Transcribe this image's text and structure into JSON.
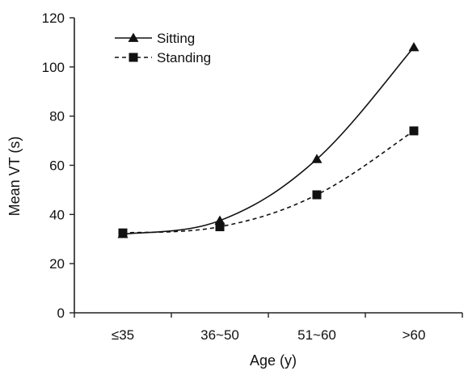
{
  "chart_data": {
    "type": "line",
    "xlabel": "Age (y)",
    "ylabel": "Mean VT (s)",
    "categories": [
      "≤35",
      "36~50",
      "51~60",
      ">60"
    ],
    "ylim": [
      0,
      120
    ],
    "yticks": [
      0,
      20,
      40,
      60,
      80,
      100,
      120
    ],
    "grid": false,
    "legend_position": "top-left",
    "series": [
      {
        "name": "Sitting",
        "marker": "triangle",
        "line_style": "solid",
        "values": [
          32,
          37.5,
          62.5,
          108
        ]
      },
      {
        "name": "Standing",
        "marker": "square",
        "line_style": "dashed",
        "values": [
          32.5,
          35,
          48,
          74
        ]
      }
    ]
  }
}
